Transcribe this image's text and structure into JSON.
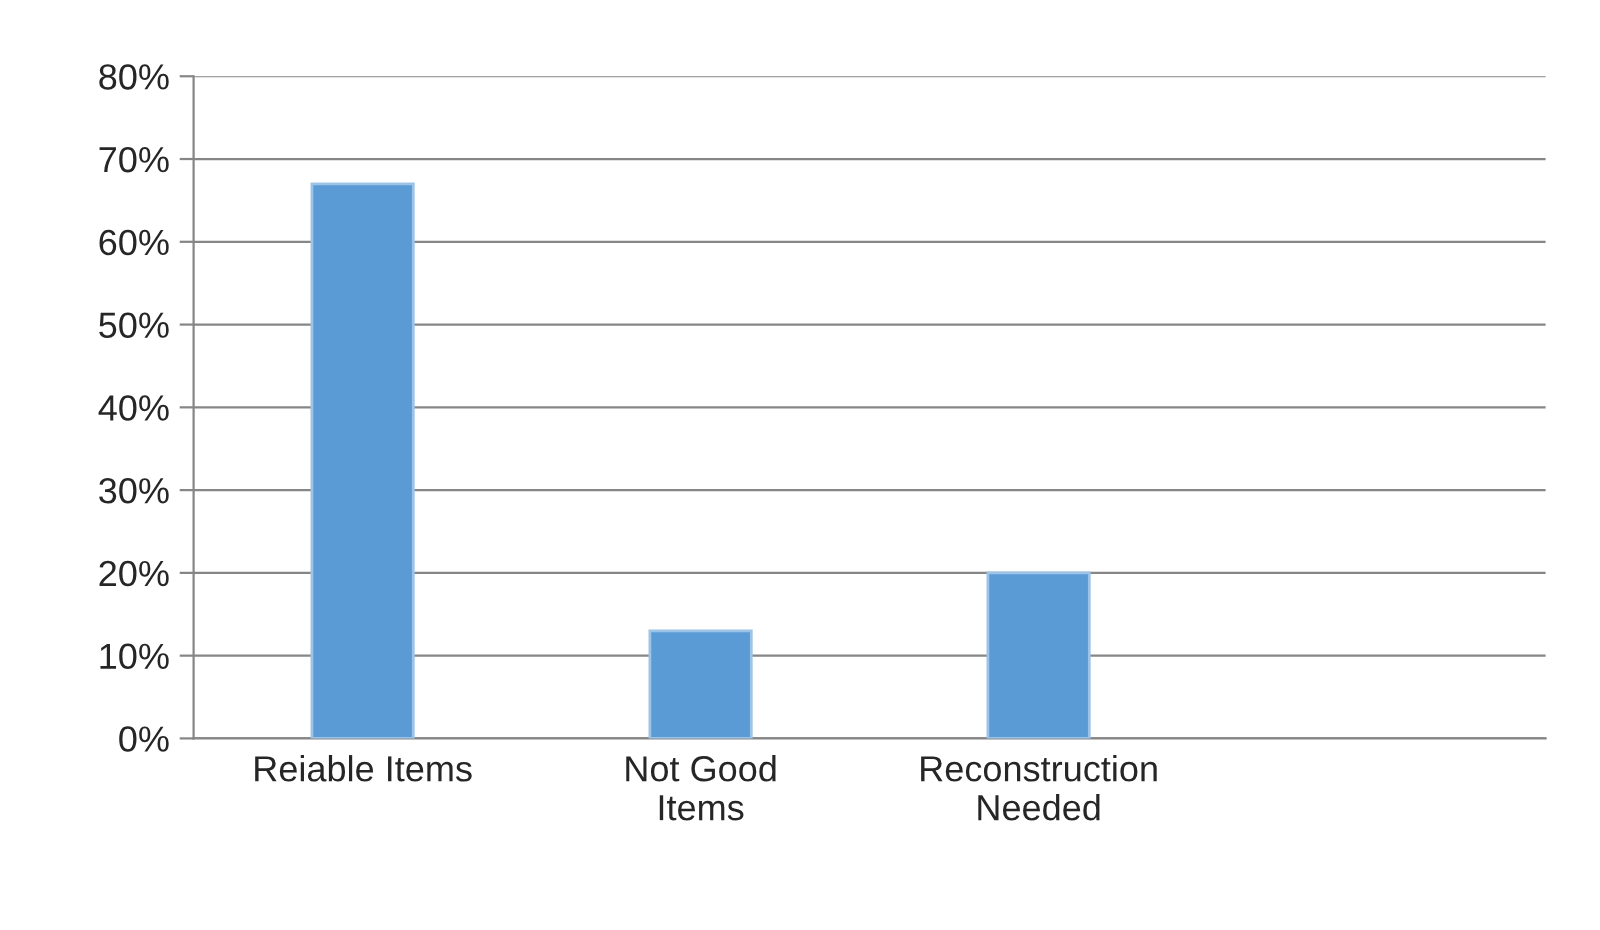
{
  "chart_data": {
    "type": "bar",
    "categories": [
      "Reiable Items",
      "Not Good\nItems",
      "Reconstruction\nNeeded",
      null
    ],
    "values": [
      67,
      13,
      20,
      null
    ],
    "color": "#5b9bd5",
    "ylim": [
      0,
      80
    ],
    "yticks": [
      {
        "value": 0,
        "label": "0%"
      },
      {
        "value": 10,
        "label": "10%"
      },
      {
        "value": 20,
        "label": "20%"
      },
      {
        "value": 30,
        "label": "30%"
      },
      {
        "value": 40,
        "label": "40%"
      },
      {
        "value": 50,
        "label": "50%"
      },
      {
        "value": 60,
        "label": "60%"
      },
      {
        "value": 70,
        "label": "70%"
      },
      {
        "value": 80,
        "label": "80%"
      }
    ],
    "grid": "y",
    "legend": false
  }
}
